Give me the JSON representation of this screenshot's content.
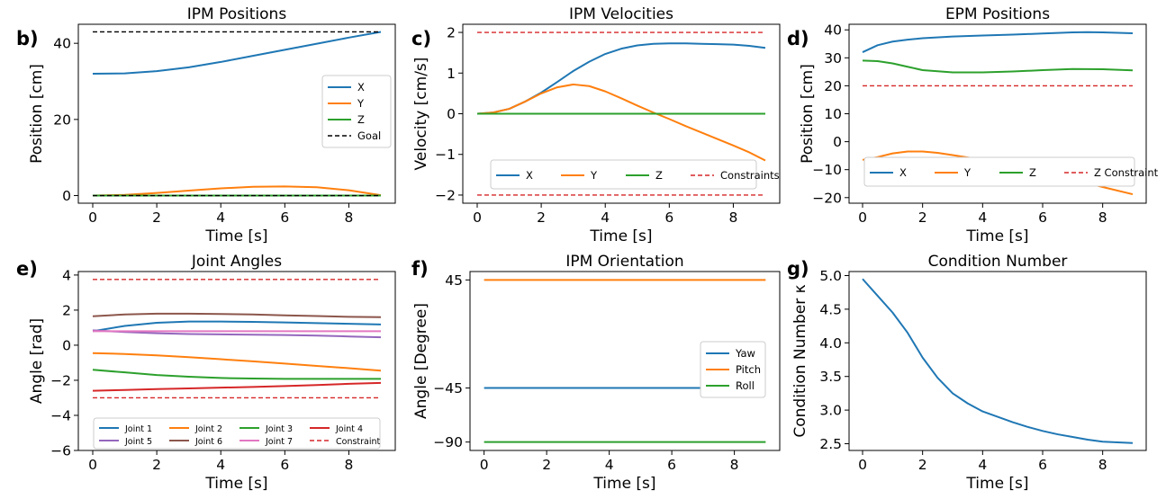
{
  "chart_data": [
    {
      "id": "b",
      "panel_label": "b)",
      "type": "line",
      "title": "IPM Positions",
      "xlabel": "Time [s]",
      "ylabel": "Position [cm]",
      "xlim": [
        -0.45,
        9.45
      ],
      "ylim": [
        -2,
        45
      ],
      "xticks": [
        0,
        2,
        4,
        6,
        8
      ],
      "yticks": [
        0,
        20,
        40
      ],
      "legend": {
        "placement": "center-right",
        "columns": 1
      },
      "series": [
        {
          "name": "X",
          "color": "#1f77b4",
          "x": [
            0,
            1,
            2,
            3,
            4,
            5,
            6,
            7,
            8,
            9
          ],
          "y": [
            32.0,
            32.1,
            32.7,
            33.7,
            35.1,
            36.7,
            38.3,
            39.9,
            41.5,
            43.0
          ]
        },
        {
          "name": "Y",
          "color": "#ff7f0e",
          "x": [
            0,
            1,
            2,
            3,
            4,
            5,
            6,
            7,
            8,
            9
          ],
          "y": [
            0.0,
            0.2,
            0.7,
            1.3,
            1.9,
            2.3,
            2.4,
            2.2,
            1.4,
            0.1
          ]
        },
        {
          "name": "Z",
          "color": "#2ca02c",
          "x": [
            0,
            9
          ],
          "y": [
            0,
            0
          ]
        },
        {
          "name": "Goal",
          "color": "#000000",
          "dash": true,
          "x": [
            0,
            9
          ],
          "y": [
            43,
            43
          ]
        },
        {
          "color": "#000000",
          "dash": true,
          "x": [
            0,
            9
          ],
          "y": [
            0,
            0
          ]
        }
      ]
    },
    {
      "id": "c",
      "panel_label": "c)",
      "type": "line",
      "title": "IPM Velocities",
      "xlabel": "Time [s]",
      "ylabel": "Velocity [cm/s]",
      "xlim": [
        -0.45,
        9.45
      ],
      "ylim": [
        -2.2,
        2.2
      ],
      "xticks": [
        0,
        2,
        4,
        6,
        8
      ],
      "yticks": [
        -2,
        -1,
        0,
        1,
        2
      ],
      "legend": {
        "placement": "lower-center",
        "columns": 4
      },
      "series": [
        {
          "name": "X",
          "color": "#1f77b4",
          "x": [
            0,
            0.5,
            1,
            1.5,
            2,
            2.5,
            3,
            3.5,
            4,
            4.5,
            5,
            5.5,
            6,
            6.5,
            7,
            7.5,
            8,
            8.5,
            9
          ],
          "y": [
            0,
            0.03,
            0.12,
            0.3,
            0.52,
            0.78,
            1.05,
            1.28,
            1.47,
            1.6,
            1.68,
            1.72,
            1.73,
            1.73,
            1.72,
            1.71,
            1.7,
            1.67,
            1.62
          ]
        },
        {
          "name": "Y",
          "color": "#ff7f0e",
          "x": [
            0,
            0.5,
            1,
            1.5,
            2,
            2.5,
            3,
            3.5,
            4,
            4.5,
            5,
            5.5,
            6,
            6.5,
            7,
            7.5,
            8,
            8.5,
            9
          ],
          "y": [
            0,
            0.03,
            0.12,
            0.3,
            0.5,
            0.65,
            0.72,
            0.68,
            0.55,
            0.38,
            0.2,
            0.03,
            -0.13,
            -0.3,
            -0.46,
            -0.62,
            -0.78,
            -0.95,
            -1.15
          ]
        },
        {
          "name": "Z",
          "color": "#2ca02c",
          "x": [
            0,
            9
          ],
          "y": [
            0,
            0
          ]
        },
        {
          "name": "Constraints",
          "color": "#d62728",
          "dash": true,
          "x": [
            0,
            9
          ],
          "y": [
            2,
            2
          ]
        },
        {
          "color": "#d62728",
          "dash": true,
          "x": [
            0,
            9
          ],
          "y": [
            -2,
            -2
          ]
        }
      ]
    },
    {
      "id": "d",
      "panel_label": "d)",
      "type": "line",
      "title": "EPM Positions",
      "xlabel": "Time [s]",
      "ylabel": "Position [cm]",
      "xlim": [
        -0.45,
        9.45
      ],
      "ylim": [
        -22,
        42
      ],
      "xticks": [
        0,
        2,
        4,
        6,
        8
      ],
      "yticks": [
        -20,
        -10,
        0,
        10,
        20,
        30,
        40
      ],
      "legend": {
        "placement": "lower-center",
        "columns": 4
      },
      "series": [
        {
          "name": "X",
          "color": "#1f77b4",
          "x": [
            0,
            0.5,
            1,
            1.5,
            2,
            3,
            4,
            5,
            6,
            7,
            7.5,
            8,
            9
          ],
          "y": [
            32.0,
            34.5,
            35.8,
            36.5,
            37.0,
            37.6,
            38.0,
            38.3,
            38.7,
            39.1,
            39.2,
            39.1,
            38.8
          ]
        },
        {
          "name": "Y",
          "color": "#ff7f0e",
          "x": [
            0,
            0.5,
            1,
            1.5,
            2,
            2.5,
            3,
            4,
            5,
            6,
            7,
            8,
            9
          ],
          "y": [
            -6.5,
            -5.5,
            -4.2,
            -3.5,
            -3.5,
            -4.0,
            -4.8,
            -6.5,
            -8.5,
            -10.8,
            -13.5,
            -16.2,
            -18.8
          ]
        },
        {
          "name": "Z",
          "color": "#2ca02c",
          "x": [
            0,
            0.5,
            1,
            1.5,
            2,
            3,
            4,
            5,
            6,
            7,
            8,
            9
          ],
          "y": [
            29.0,
            28.8,
            28.0,
            26.8,
            25.6,
            24.8,
            24.8,
            25.1,
            25.6,
            26.0,
            25.9,
            25.5
          ]
        },
        {
          "name": "Z Constraint",
          "color": "#d62728",
          "dash": true,
          "x": [
            0,
            9
          ],
          "y": [
            20,
            20
          ]
        }
      ]
    },
    {
      "id": "e",
      "panel_label": "e)",
      "type": "line",
      "title": "Joint Angles",
      "xlabel": "Time [s]",
      "ylabel": "Angle [rad]",
      "xlim": [
        -0.45,
        9.45
      ],
      "ylim": [
        -6,
        4.2
      ],
      "xticks": [
        0,
        2,
        4,
        6,
        8
      ],
      "yticks": [
        -6,
        -4,
        -2,
        0,
        2,
        4
      ],
      "legend": {
        "placement": "lower-center",
        "columns": 4,
        "small": true
      },
      "series": [
        {
          "name": "Joint 1",
          "color": "#1f77b4",
          "x": [
            0,
            1,
            2,
            3,
            4,
            5,
            6,
            7,
            8,
            9
          ],
          "y": [
            0.8,
            1.1,
            1.28,
            1.35,
            1.35,
            1.33,
            1.3,
            1.26,
            1.22,
            1.18
          ]
        },
        {
          "name": "Joint 2",
          "color": "#ff7f0e",
          "x": [
            0,
            1,
            2,
            3,
            4,
            5,
            6,
            7,
            8,
            9
          ],
          "y": [
            -0.45,
            -0.5,
            -0.58,
            -0.68,
            -0.8,
            -0.92,
            -1.05,
            -1.18,
            -1.31,
            -1.45
          ]
        },
        {
          "name": "Joint 3",
          "color": "#2ca02c",
          "x": [
            0,
            1,
            2,
            3,
            4,
            5,
            6,
            7,
            8,
            9
          ],
          "y": [
            -1.4,
            -1.55,
            -1.7,
            -1.8,
            -1.87,
            -1.9,
            -1.92,
            -1.92,
            -1.92,
            -1.92
          ]
        },
        {
          "name": "Joint 4",
          "color": "#d62728",
          "x": [
            0,
            1,
            2,
            3,
            4,
            5,
            6,
            7,
            8,
            9
          ],
          "y": [
            -2.6,
            -2.55,
            -2.5,
            -2.46,
            -2.42,
            -2.38,
            -2.33,
            -2.27,
            -2.2,
            -2.15
          ]
        },
        {
          "name": "Joint 5",
          "color": "#9467bd",
          "x": [
            0,
            1,
            2,
            3,
            4,
            5,
            6,
            7,
            8,
            9
          ],
          "y": [
            0.85,
            0.75,
            0.68,
            0.64,
            0.62,
            0.6,
            0.58,
            0.55,
            0.5,
            0.45
          ]
        },
        {
          "name": "Joint 6",
          "color": "#8c564b",
          "x": [
            0,
            1,
            2,
            3,
            4,
            5,
            6,
            7,
            8,
            9
          ],
          "y": [
            1.65,
            1.75,
            1.8,
            1.8,
            1.78,
            1.75,
            1.7,
            1.66,
            1.62,
            1.6
          ]
        },
        {
          "name": "Joint 7",
          "color": "#e377c2",
          "x": [
            0,
            9
          ],
          "y": [
            0.8,
            0.8
          ]
        },
        {
          "name": "Constraint",
          "color": "#d62728",
          "dash": true,
          "x": [
            0,
            9
          ],
          "y": [
            3.75,
            3.75
          ]
        },
        {
          "color": "#d62728",
          "dash": true,
          "x": [
            0,
            9
          ],
          "y": [
            -3.0,
            -3.0
          ]
        }
      ]
    },
    {
      "id": "f",
      "panel_label": "f)",
      "type": "line",
      "title": "IPM Orientation",
      "xlabel": "Time [s]",
      "ylabel": "Angle [Degree]",
      "xlim": [
        -0.45,
        9.45
      ],
      "ylim": [
        -97,
        52
      ],
      "xticks": [
        0,
        2,
        4,
        6,
        8
      ],
      "yticks": [
        -90,
        -45,
        45
      ],
      "legend": {
        "placement": "center-right",
        "columns": 1
      },
      "series": [
        {
          "name": "Yaw",
          "color": "#1f77b4",
          "x": [
            0,
            9
          ],
          "y": [
            -45,
            -45
          ]
        },
        {
          "name": "Pitch",
          "color": "#ff7f0e",
          "x": [
            0,
            9
          ],
          "y": [
            45,
            45
          ]
        },
        {
          "name": "Roll",
          "color": "#2ca02c",
          "x": [
            0,
            9
          ],
          "y": [
            -90,
            -90
          ]
        }
      ]
    },
    {
      "id": "g",
      "panel_label": "g)",
      "type": "line",
      "title": "Condition Number",
      "xlabel": "Time [s]",
      "ylabel": "Condition Number κ",
      "xlim": [
        -0.45,
        9.45
      ],
      "ylim": [
        2.4,
        5.06
      ],
      "xticks": [
        0,
        2,
        4,
        6,
        8
      ],
      "yticks": [
        2.5,
        3.0,
        3.5,
        4.0,
        4.5,
        5.0
      ],
      "legend": null,
      "series": [
        {
          "color": "#1f77b4",
          "x": [
            0,
            0.5,
            1,
            1.5,
            2,
            2.5,
            3,
            3.5,
            4,
            4.5,
            5,
            5.5,
            6,
            6.5,
            7,
            7.5,
            8,
            8.5,
            9
          ],
          "y": [
            4.95,
            4.7,
            4.45,
            4.15,
            3.78,
            3.48,
            3.25,
            3.1,
            2.98,
            2.9,
            2.82,
            2.75,
            2.69,
            2.64,
            2.6,
            2.56,
            2.53,
            2.52,
            2.51
          ]
        }
      ]
    }
  ]
}
